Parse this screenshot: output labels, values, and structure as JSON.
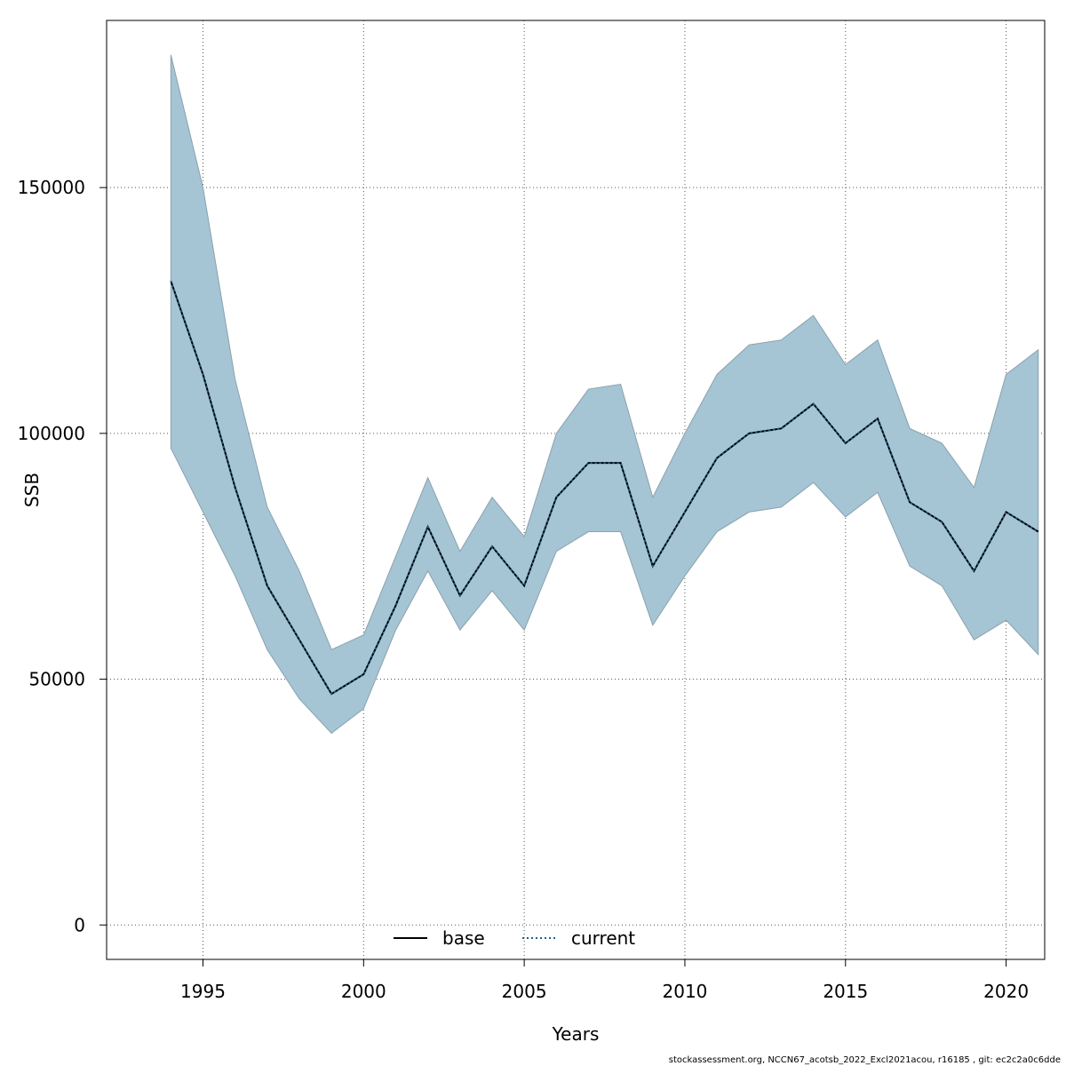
{
  "chart_data": {
    "type": "line",
    "title": "",
    "xlabel": "Years",
    "ylabel": "SSB",
    "xlim": [
      1992,
      2021.2
    ],
    "ylim": [
      -7000,
      184000
    ],
    "xticks": [
      1995,
      2000,
      2005,
      2010,
      2015,
      2020
    ],
    "yticks": [
      0,
      50000,
      100000,
      150000
    ],
    "grid": true,
    "legend_position": "bottom-center",
    "x": [
      1994,
      1995,
      1996,
      1997,
      1998,
      1999,
      2000,
      2001,
      2002,
      2003,
      2004,
      2005,
      2006,
      2007,
      2008,
      2009,
      2010,
      2011,
      2012,
      2013,
      2014,
      2015,
      2016,
      2017,
      2018,
      2019,
      2020,
      2021
    ],
    "series": [
      {
        "name": "base",
        "style": "solid",
        "color": "#000000",
        "values": [
          131000,
          112000,
          89000,
          69000,
          58000,
          47000,
          51000,
          65000,
          81000,
          67000,
          77000,
          69000,
          87000,
          94000,
          94000,
          73000,
          84000,
          95000,
          100000,
          101000,
          106000,
          98000,
          103000,
          86000,
          82000,
          72000,
          84000,
          80000
        ]
      },
      {
        "name": "current",
        "style": "dotted",
        "color": "#1f5f8b",
        "values": [
          131000,
          112000,
          89000,
          69000,
          58000,
          47000,
          51000,
          65000,
          81000,
          67000,
          77000,
          69000,
          87000,
          94000,
          94000,
          73000,
          84000,
          95000,
          100000,
          101000,
          106000,
          98000,
          103000,
          86000,
          82000,
          72000,
          84000,
          80000
        ]
      }
    ],
    "band": {
      "color": "#a5c4d4",
      "upper": [
        177000,
        150000,
        111000,
        85000,
        72000,
        56000,
        59000,
        75000,
        91000,
        76000,
        87000,
        79000,
        100000,
        109000,
        110000,
        87000,
        100000,
        112000,
        118000,
        119000,
        124000,
        114000,
        119000,
        101000,
        98000,
        89000,
        112000,
        117000
      ],
      "lower": [
        97000,
        84000,
        71000,
        56000,
        46000,
        39000,
        44000,
        60000,
        72000,
        60000,
        68000,
        60000,
        76000,
        80000,
        80000,
        61000,
        71000,
        80000,
        84000,
        85000,
        90000,
        83000,
        88000,
        73000,
        69000,
        58000,
        62000,
        55000
      ]
    }
  },
  "footer": "stockassessment.org, NCCN67_acotsb_2022_Excl2021acou, r16185 , git: ec2c2a0c6dde"
}
